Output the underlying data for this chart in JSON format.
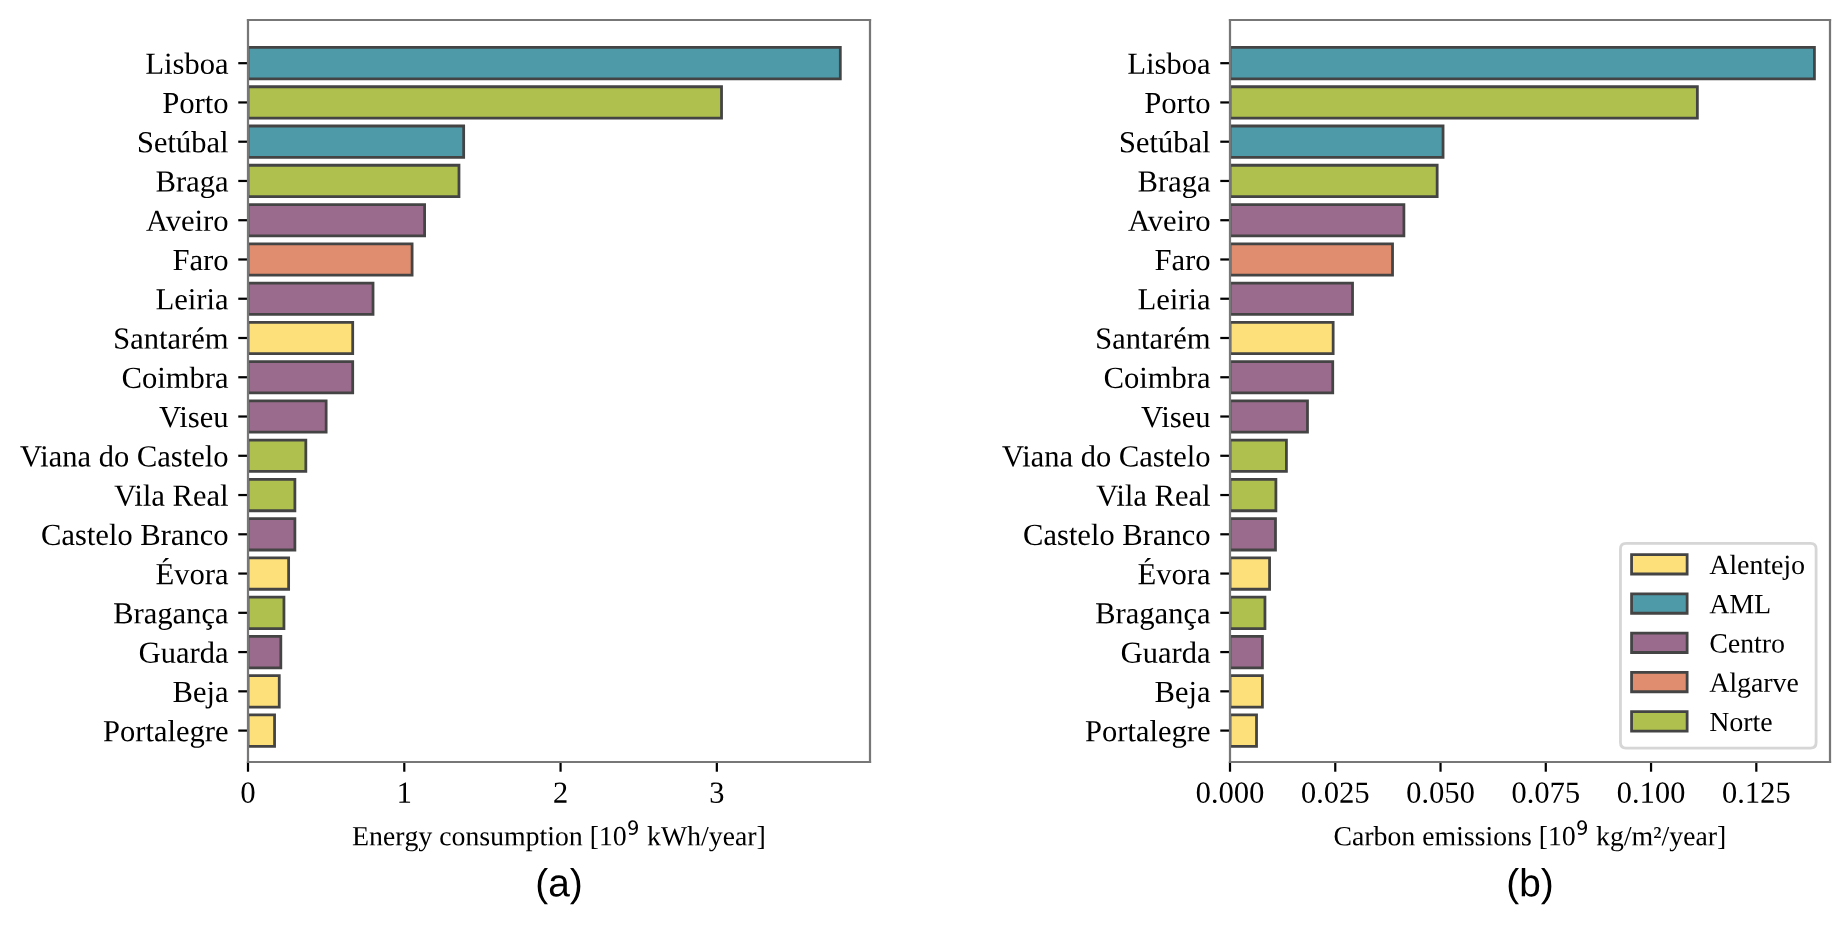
{
  "chart_data": [
    {
      "type": "bar",
      "orientation": "horizontal",
      "xlabel": "Energy consumption [10$^{9}$ kWh/year]",
      "annotations": [
        "(a)"
      ],
      "categories": [
        "Lisboa",
        "Porto",
        "Setúbal",
        "Braga",
        "Aveiro",
        "Faro",
        "Leiria",
        "Santarém",
        "Coimbra",
        "Viseu",
        "Viana do Castelo",
        "Vila Real",
        "Castelo Branco",
        "Évora",
        "Bragança",
        "Guarda",
        "Beja",
        "Portalegre"
      ],
      "series": [
        {
          "color": "#fde07a",
          "values": [
            null,
            null,
            null,
            null,
            null,
            null,
            null,
            0.67,
            null,
            null,
            null,
            null,
            null,
            0.26,
            null,
            null,
            0.2,
            0.17
          ]
        },
        {
          "color": "#4e9aa9",
          "values": [
            3.79,
            null,
            1.38,
            null,
            null,
            null,
            null,
            null,
            null,
            null,
            null,
            null,
            null,
            null,
            null,
            null,
            null,
            null
          ]
        },
        {
          "color": "#9b6b8d",
          "values": [
            null,
            null,
            null,
            null,
            1.13,
            null,
            0.8,
            null,
            0.67,
            0.5,
            null,
            null,
            0.3,
            null,
            null,
            0.21,
            null,
            null
          ]
        },
        {
          "color": "#e08c6e",
          "values": [
            null,
            null,
            null,
            null,
            null,
            1.05,
            null,
            null,
            null,
            null,
            null,
            null,
            null,
            null,
            null,
            null,
            null,
            null
          ]
        },
        {
          "color": "#afc04e",
          "values": [
            null,
            3.03,
            null,
            1.35,
            null,
            null,
            null,
            null,
            null,
            null,
            0.37,
            0.3,
            null,
            null,
            0.23,
            null,
            null,
            null
          ]
        }
      ],
      "xlim": [
        0,
        3.98
      ],
      "xticks": [
        0,
        1,
        2,
        3
      ],
      "grid": false,
      "legend": false
    },
    {
      "type": "bar",
      "orientation": "horizontal",
      "xlabel": "Carbon emissions [10$^{9}$ kg/m²/year]",
      "annotations": [
        "(b)"
      ],
      "categories": [
        "Lisboa",
        "Porto",
        "Setúbal",
        "Braga",
        "Aveiro",
        "Faro",
        "Leiria",
        "Santarém",
        "Coimbra",
        "Viseu",
        "Viana do Castelo",
        "Vila Real",
        "Castelo Branco",
        "Évora",
        "Bragança",
        "Guarda",
        "Beja",
        "Portalegre"
      ],
      "series": [
        {
          "name": "Alentejo",
          "color": "#fde07a",
          "values": [
            null,
            null,
            null,
            null,
            null,
            null,
            null,
            0.0245,
            null,
            null,
            null,
            null,
            null,
            0.0094,
            null,
            null,
            0.0077,
            0.0063
          ]
        },
        {
          "name": "AML",
          "color": "#4e9aa9",
          "values": [
            0.1388,
            null,
            0.0506,
            null,
            null,
            null,
            null,
            null,
            null,
            null,
            null,
            null,
            null,
            null,
            null,
            null,
            null,
            null
          ]
        },
        {
          "name": "Centro",
          "color": "#9b6b8d",
          "values": [
            null,
            null,
            null,
            null,
            0.0413,
            null,
            0.0291,
            null,
            0.0244,
            0.0184,
            null,
            null,
            0.0108,
            null,
            null,
            0.0077,
            null,
            null
          ]
        },
        {
          "name": "Algarve",
          "color": "#e08c6e",
          "values": [
            null,
            null,
            null,
            null,
            null,
            0.0386,
            null,
            null,
            null,
            null,
            null,
            null,
            null,
            null,
            null,
            null,
            null,
            null
          ]
        },
        {
          "name": "Norte",
          "color": "#afc04e",
          "values": [
            null,
            0.111,
            null,
            0.0492,
            null,
            null,
            null,
            null,
            null,
            null,
            0.0134,
            0.0109,
            null,
            null,
            0.0083,
            null,
            null,
            null
          ]
        }
      ],
      "xlim": [
        0,
        0.1425
      ],
      "xticks": [
        {
          "value": 0,
          "label": "0.000"
        },
        0.025,
        {
          "value": 0.05,
          "label": "0.050"
        },
        0.075,
        {
          "value": 0.1,
          "label": "0.100"
        },
        0.125
      ],
      "grid": false,
      "legend": "bottom right"
    }
  ]
}
